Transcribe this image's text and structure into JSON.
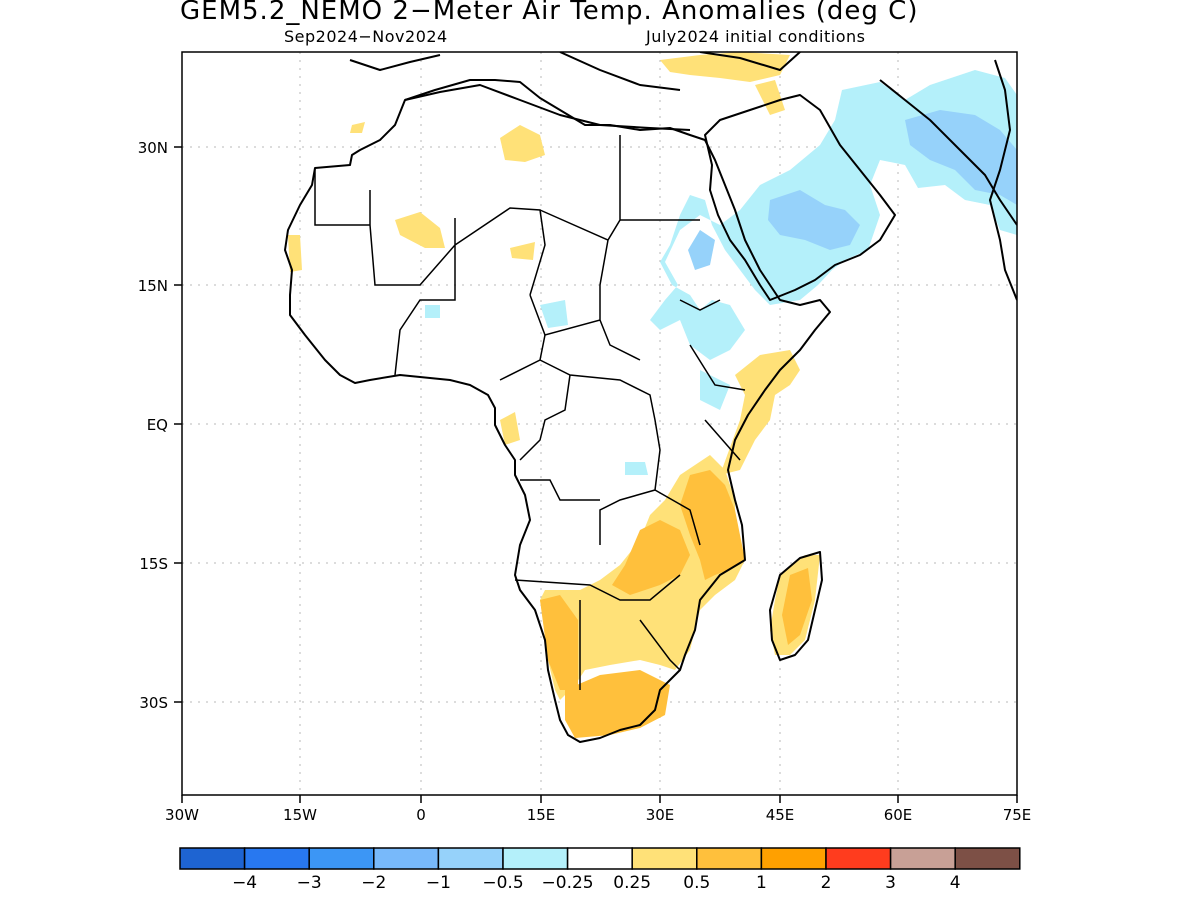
{
  "title": "GEM5.2_NEMO 2−Meter Air Temp. Anomalies (deg C)",
  "subtitle_left": "Sep2024−Nov2024",
  "subtitle_right": "July2024 initial conditions",
  "lat_labels": [
    "30N",
    "15N",
    "EQ",
    "15S",
    "30S"
  ],
  "lon_labels": [
    "30W",
    "15W",
    "0",
    "15E",
    "30E",
    "45E",
    "60E",
    "75E"
  ],
  "colorbar": {
    "colors": [
      "#1e64d2",
      "#2878f0",
      "#3c96f5",
      "#78b9fa",
      "#96d2fa",
      "#b4f0fa",
      "#ffffff",
      "#ffe178",
      "#ffc03c",
      "#ffa000",
      "#ff3c1e",
      "#c8a096",
      "#7d5046"
    ],
    "labels": [
      "−4",
      "−3",
      "−2",
      "−1",
      "−0.5",
      "−0.25",
      "0.25",
      "0.5",
      "1",
      "2",
      "3",
      "4"
    ]
  },
  "colors": {
    "blue_anomaly": "#b4f0fa",
    "blue_strong": "#96d2fa",
    "yellow_anomaly": "#ffe178",
    "orange_anomaly": "#ffc03c"
  }
}
